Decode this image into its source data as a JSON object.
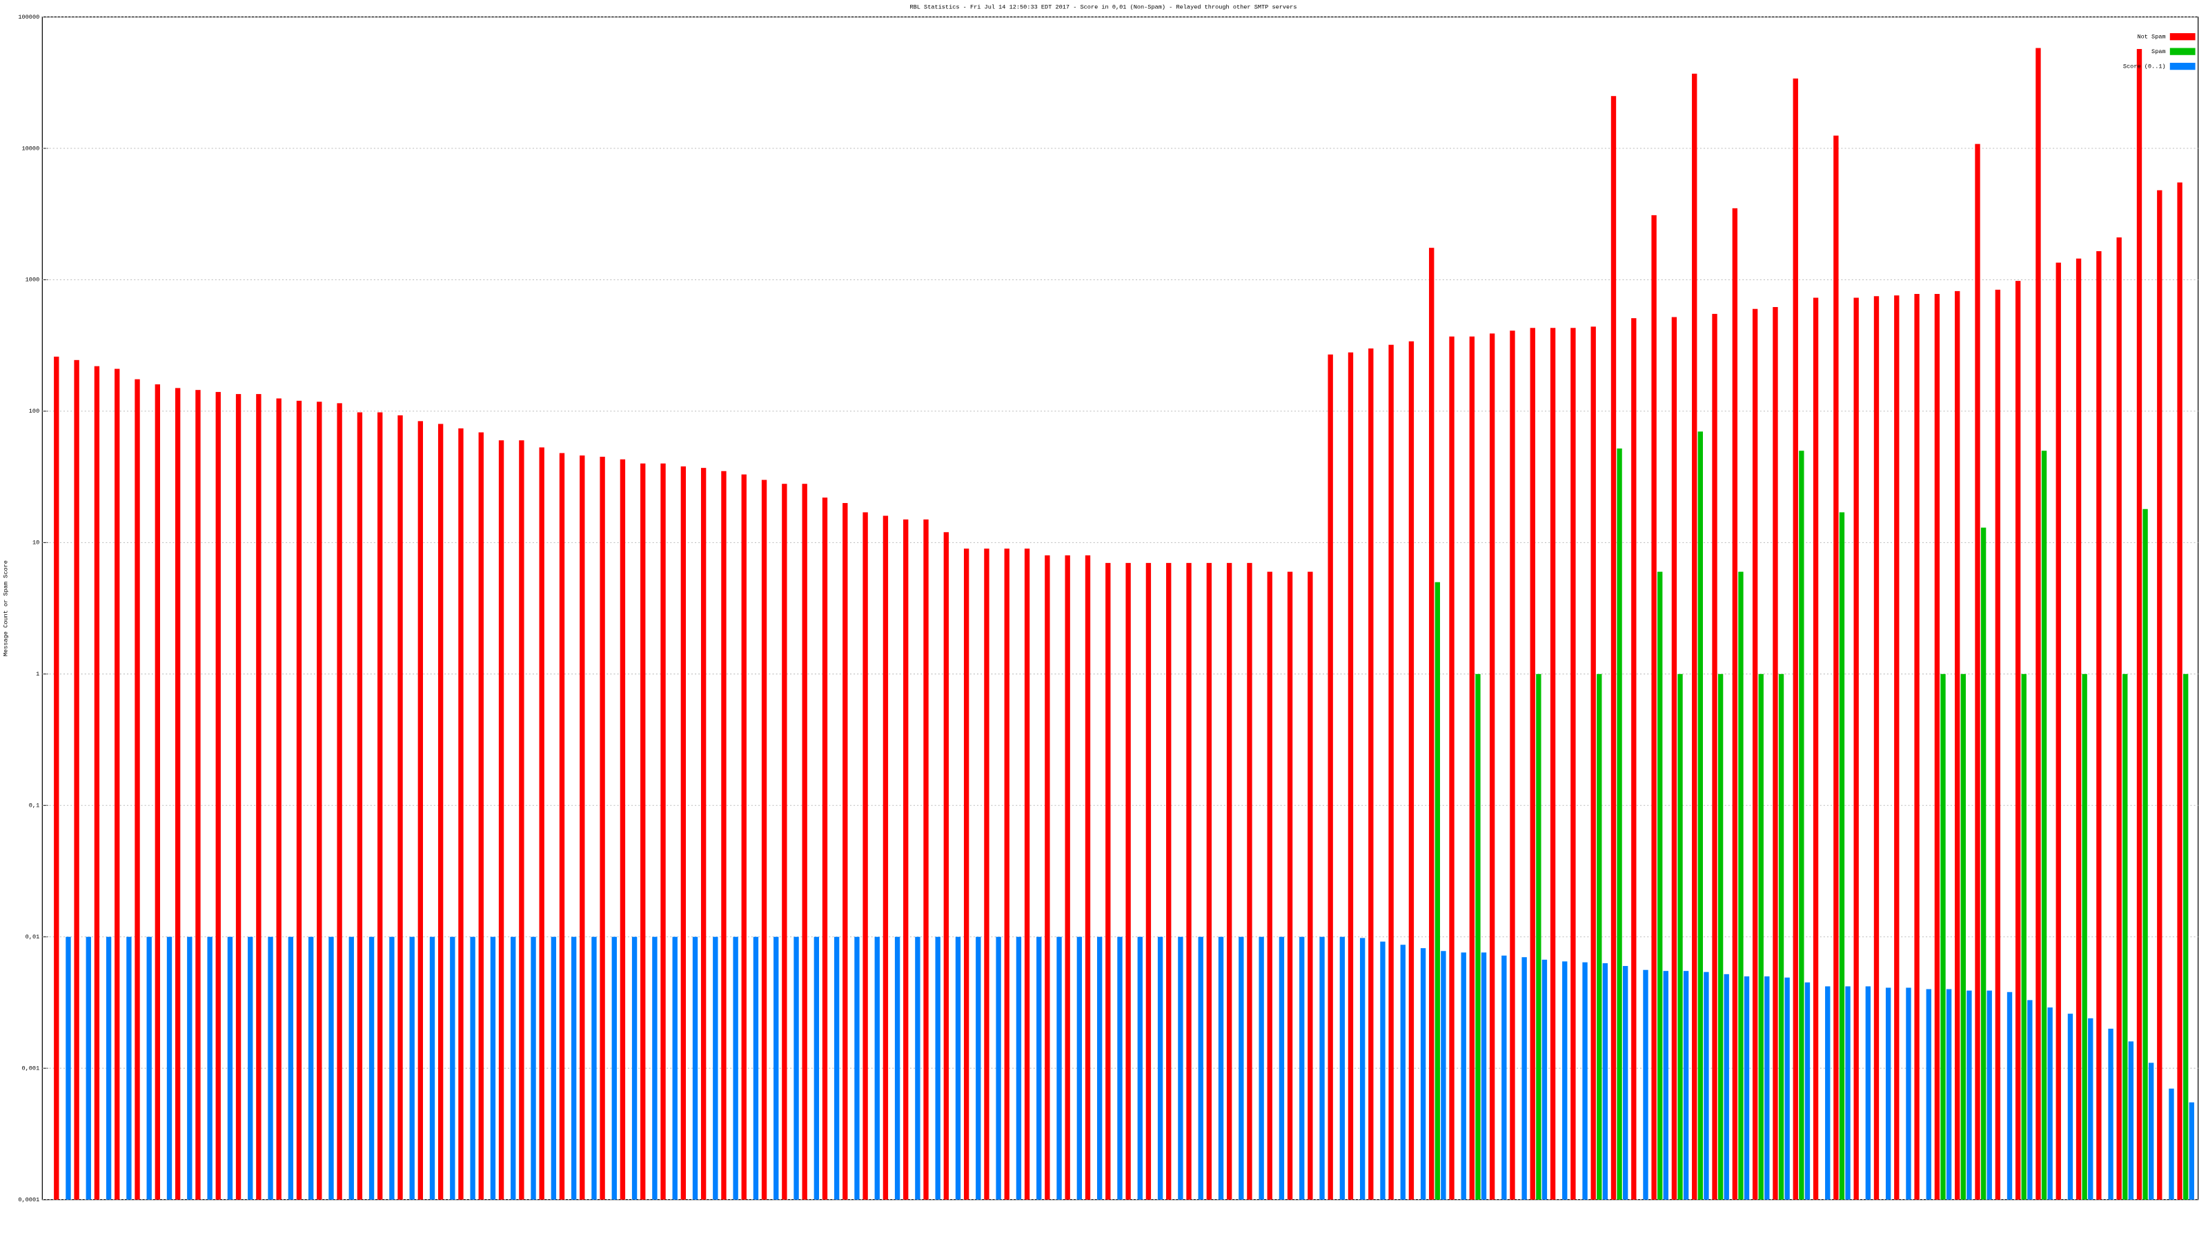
{
  "chart_data": {
    "type": "bar",
    "log_scale": true,
    "grid": true,
    "legend": "top-right",
    "title": "RBL Statistics - Fri Jul 14 12:50:33 EDT 2017 - Score in 0,01 (Non-Spam) - Relayed through other SMTP servers",
    "ylabel": "Message Count or Spam Score",
    "ylim": [
      0.0001,
      100000
    ],
    "yticks": [
      {
        "value": 0.0001,
        "label": "0,0001"
      },
      {
        "value": 0.001,
        "label": "0,001"
      },
      {
        "value": 0.01,
        "label": "0,01"
      },
      {
        "value": 0.1,
        "label": "0,1"
      },
      1,
      10,
      100,
      1000,
      10000,
      100000
    ],
    "series": [
      {
        "name": "Not Spam",
        "color": "#ff0000",
        "values": [
          260,
          245,
          220,
          210,
          175,
          160,
          150,
          145,
          140,
          135,
          135,
          125,
          120,
          118,
          115,
          98,
          98,
          93,
          84,
          80,
          74,
          69,
          60,
          60,
          53,
          48,
          46,
          45,
          43,
          40,
          40,
          38,
          37,
          35,
          33,
          30,
          28,
          28,
          22,
          20,
          17,
          16,
          15,
          15,
          12,
          9,
          9,
          9,
          9,
          8,
          8,
          8,
          7,
          7,
          7,
          7,
          7,
          7,
          7,
          7,
          6,
          6,
          6,
          270,
          280,
          300,
          320,
          340,
          1750,
          370,
          370,
          390,
          410,
          430,
          430,
          430,
          440,
          25000,
          510,
          3100,
          520,
          37000,
          550,
          3500,
          600,
          620,
          34000,
          730,
          12500,
          730,
          750,
          760,
          780,
          780,
          820,
          10800,
          840,
          980,
          58000,
          1350,
          1450,
          1650,
          2100,
          57000,
          4800,
          5500
        ]
      },
      {
        "name": "Spam",
        "color": "#00c000",
        "values": [
          null,
          null,
          null,
          null,
          null,
          null,
          null,
          null,
          null,
          null,
          null,
          null,
          null,
          null,
          null,
          null,
          null,
          null,
          null,
          null,
          null,
          null,
          null,
          null,
          null,
          null,
          null,
          null,
          null,
          null,
          null,
          null,
          null,
          null,
          null,
          null,
          null,
          null,
          null,
          null,
          null,
          null,
          null,
          null,
          null,
          null,
          null,
          null,
          null,
          null,
          null,
          null,
          null,
          null,
          null,
          null,
          null,
          null,
          null,
          null,
          null,
          null,
          null,
          null,
          null,
          null,
          null,
          null,
          5,
          null,
          1,
          null,
          null,
          1,
          null,
          null,
          1,
          52,
          null,
          6,
          1,
          70,
          1,
          6,
          1,
          1,
          50,
          null,
          17,
          null,
          null,
          null,
          null,
          1,
          1,
          13,
          null,
          1,
          50,
          null,
          1,
          null,
          1,
          18,
          null,
          1
        ]
      },
      {
        "name": "Score (0..1)",
        "color": "#0080ff",
        "values": [
          0.01,
          0.01,
          0.01,
          0.01,
          0.01,
          0.01,
          0.01,
          0.01,
          0.01,
          0.01,
          0.01,
          0.01,
          0.01,
          0.01,
          0.01,
          0.01,
          0.01,
          0.01,
          0.01,
          0.01,
          0.01,
          0.01,
          0.01,
          0.01,
          0.01,
          0.01,
          0.01,
          0.01,
          0.01,
          0.01,
          0.01,
          0.01,
          0.01,
          0.01,
          0.01,
          0.01,
          0.01,
          0.01,
          0.01,
          0.01,
          0.01,
          0.01,
          0.01,
          0.01,
          0.01,
          0.01,
          0.01,
          0.01,
          0.01,
          0.01,
          0.01,
          0.01,
          0.01,
          0.01,
          0.01,
          0.01,
          0.01,
          0.01,
          0.01,
          0.01,
          0.01,
          0.01,
          0.01,
          0.01,
          0.0098,
          0.0092,
          0.0087,
          0.0082,
          0.0078,
          0.0076,
          0.0076,
          0.0072,
          0.007,
          0.0067,
          0.0065,
          0.0064,
          0.0063,
          0.006,
          0.0056,
          0.0055,
          0.0055,
          0.0054,
          0.0052,
          0.005,
          0.005,
          0.0049,
          0.0045,
          0.0042,
          0.0042,
          0.0042,
          0.0041,
          0.0041,
          0.004,
          0.004,
          0.0039,
          0.0039,
          0.0038,
          0.0033,
          0.0029,
          0.0026,
          0.0024,
          0.002,
          0.0016,
          0.0011,
          0.0007,
          0.00055
        ]
      }
    ]
  }
}
